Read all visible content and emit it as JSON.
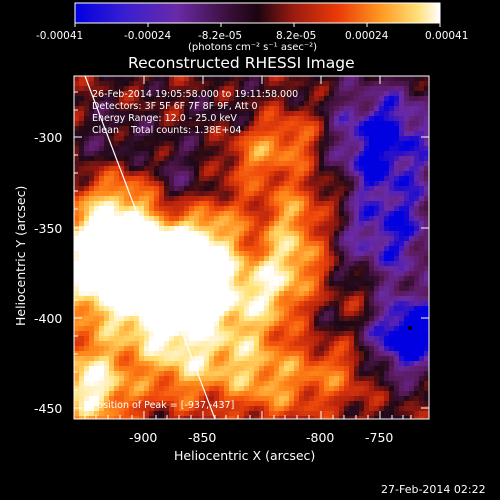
{
  "colorbar": {
    "tick_labels": [
      "-0.00041",
      "-0.00024",
      "-8.2e-05",
      "8.2e-05",
      "0.00024",
      "0.00041"
    ],
    "unit_label": "(photons cm⁻² s⁻¹ asec⁻²)"
  },
  "title": "Reconstructed RHESSI Image",
  "info": {
    "time_range": "26-Feb-2014 19:05:58.000 to 19:11:58.000",
    "detectors": "Detectors: 3F 5F 6F 7F 8F 9F, Att 0",
    "energy_range": "Energy Range: 12.0 - 25.0 keV",
    "method_counts": "Clean    Total counts: 1.38E+04"
  },
  "peak_label": "Position of Peak = [-937,-437]",
  "axes": {
    "xlabel": "Heliocentric X (arcsec)",
    "ylabel": "Heliocentric Y (arcsec)",
    "x_ticks": [
      "-900",
      "-850",
      "-800",
      "-750"
    ],
    "y_ticks": [
      "-300",
      "-350",
      "-400",
      "-450"
    ]
  },
  "footer_timestamp": "27-Feb-2014 02:22",
  "colors": {
    "background": "#000000",
    "colormap": [
      "#0000e0",
      "#6a2aa6",
      "#5a1a5a",
      "#1e0816",
      "#b01e0e",
      "#f04a0a",
      "#ff8c1c",
      "#ffe070",
      "#ffffff"
    ]
  }
}
